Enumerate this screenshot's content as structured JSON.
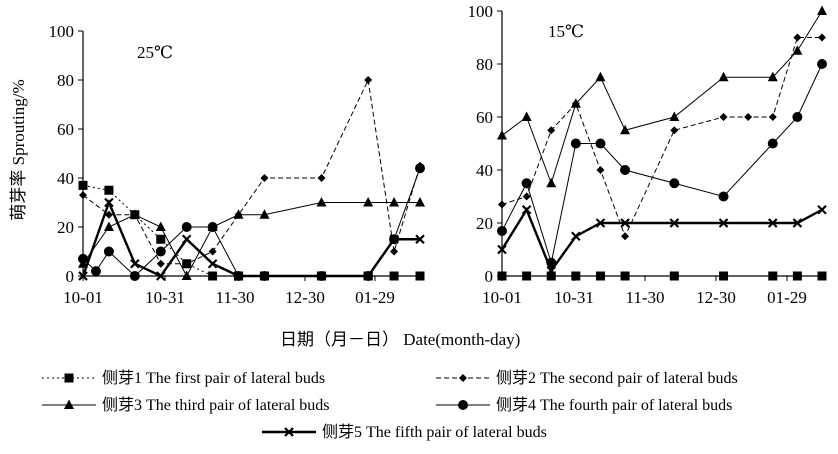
{
  "figure": {
    "y_axis_label": "萌芽率 Sprouting/%",
    "x_axis_label": "日期（月－日） Date(month-day)"
  },
  "chart_data": [
    {
      "type": "line",
      "annotation": "25℃",
      "x_labels": [
        "10-01",
        "10-31",
        "11-30",
        "12-30",
        "01-29"
      ],
      "ylim": [
        0,
        100
      ],
      "yticks": [
        0,
        20,
        40,
        60,
        80,
        100
      ],
      "series": [
        {
          "name": "侧芽1 The first pair of lateral buds",
          "x": [
            "10-01",
            "10-11",
            "10-21",
            "10-31",
            "11-10",
            "11-20",
            "11-30",
            "12-10",
            "01-01",
            "01-19",
            "01-29",
            "02-08"
          ],
          "values": [
            37,
            35,
            25,
            15,
            5,
            0,
            0,
            0,
            0,
            0,
            0,
            0
          ]
        },
        {
          "name": "侧芽2 The second pair of lateral buds",
          "x": [
            "10-01",
            "10-11",
            "10-21",
            "10-31",
            "11-10",
            "11-20",
            "11-30",
            "12-10",
            "01-01",
            "01-19",
            "01-29",
            "02-08"
          ],
          "values": [
            33,
            25,
            25,
            5,
            5,
            10,
            25,
            40,
            40,
            80,
            10,
            45
          ]
        },
        {
          "name": "侧芽3 The third pair of lateral buds",
          "x": [
            "10-01",
            "10-11",
            "10-21",
            "10-31",
            "11-10",
            "11-20",
            "11-30",
            "12-10",
            "01-01",
            "01-19",
            "01-29",
            "02-08"
          ],
          "values": [
            5,
            20,
            25,
            20,
            0,
            20,
            25,
            25,
            30,
            30,
            30,
            30
          ]
        },
        {
          "name": "侧芽4 The fourth pair of lateral buds",
          "x": [
            "10-01",
            "10-06",
            "10-11",
            "10-21",
            "10-31",
            "11-10",
            "11-20",
            "11-30",
            "12-10",
            "01-01",
            "01-19",
            "01-29",
            "02-08"
          ],
          "values": [
            7,
            2,
            10,
            0,
            10,
            20,
            20,
            0,
            0,
            0,
            0,
            15,
            44
          ]
        },
        {
          "name": "侧芽5 The fifth pair of lateral buds",
          "x": [
            "10-01",
            "10-11",
            "10-21",
            "10-31",
            "11-10",
            "11-20",
            "11-30",
            "12-10",
            "01-01",
            "01-19",
            "01-29",
            "02-08"
          ],
          "values": [
            0,
            30,
            5,
            0,
            15,
            5,
            0,
            0,
            0,
            0,
            15,
            15
          ]
        }
      ]
    },
    {
      "type": "line",
      "annotation": "15℃",
      "x_labels": [
        "10-01",
        "10-31",
        "11-30",
        "12-30",
        "01-29"
      ],
      "ylim": [
        0,
        100
      ],
      "yticks": [
        0,
        20,
        40,
        60,
        80,
        100
      ],
      "series": [
        {
          "name": "侧芽1 The first pair of lateral buds",
          "x": [
            "10-01",
            "10-11",
            "10-21",
            "10-31",
            "11-10",
            "11-20",
            "12-10",
            "12-30",
            "01-19",
            "01-29",
            "02-08"
          ],
          "values": [
            0,
            0,
            0,
            0,
            0,
            0,
            0,
            0,
            0,
            0,
            0
          ]
        },
        {
          "name": "侧芽2 The second pair of lateral buds",
          "x": [
            "10-01",
            "10-11",
            "10-21",
            "10-31",
            "11-10",
            "11-20",
            "12-10",
            "12-30",
            "01-09",
            "01-19",
            "01-29",
            "02-08"
          ],
          "values": [
            27,
            30,
            55,
            65,
            40,
            15,
            55,
            60,
            60,
            60,
            90,
            90
          ]
        },
        {
          "name": "侧芽3 The third pair of lateral buds",
          "x": [
            "10-01",
            "10-11",
            "10-21",
            "10-31",
            "11-10",
            "11-20",
            "12-10",
            "12-30",
            "01-19",
            "01-29",
            "02-08"
          ],
          "values": [
            53,
            60,
            35,
            65,
            75,
            55,
            60,
            75,
            75,
            85,
            100
          ]
        },
        {
          "name": "侧芽4 The fourth pair of lateral buds",
          "x": [
            "10-01",
            "10-11",
            "10-21",
            "10-31",
            "11-10",
            "11-20",
            "12-10",
            "12-30",
            "01-19",
            "01-29",
            "02-08"
          ],
          "values": [
            17,
            35,
            5,
            50,
            50,
            40,
            35,
            30,
            50,
            60,
            80
          ]
        },
        {
          "name": "侧芽5 The fifth pair of lateral buds",
          "x": [
            "10-01",
            "10-11",
            "10-21",
            "10-31",
            "11-10",
            "11-20",
            "12-10",
            "12-30",
            "01-19",
            "01-29",
            "02-08"
          ],
          "values": [
            10,
            25,
            2,
            15,
            20,
            20,
            20,
            20,
            20,
            20,
            25
          ]
        }
      ]
    }
  ]
}
